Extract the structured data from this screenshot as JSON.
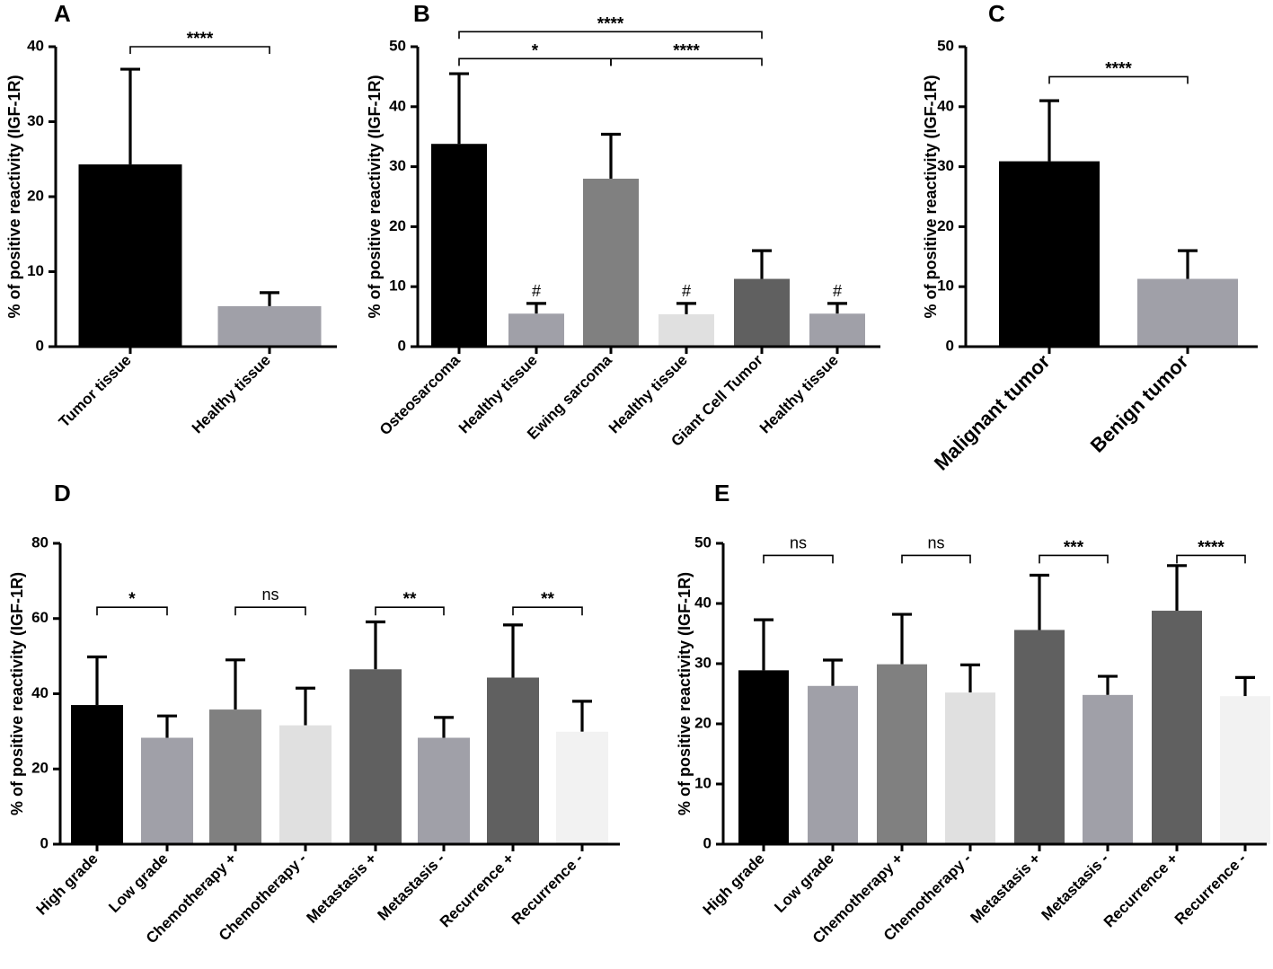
{
  "chart_data": [
    {
      "panel": "A",
      "type": "bar",
      "ylabel": "% of positive reactivity (IGF-1R)",
      "ylim": [
        0,
        40
      ],
      "yticks": [
        0,
        10,
        20,
        30,
        40
      ],
      "categories": [
        "Tumor tissue",
        "Healthy tissue"
      ],
      "values": [
        24.3,
        5.4
      ],
      "errors": [
        12.7,
        1.8
      ],
      "colors": [
        "#000000",
        "#a0a0a8"
      ],
      "brackets": [
        {
          "from": 0,
          "to": 1,
          "label": "****",
          "y": 40
        }
      ],
      "marks": []
    },
    {
      "panel": "B",
      "type": "bar",
      "ylabel": "% of positive reactivity (IGF-1R)",
      "ylim": [
        0,
        50
      ],
      "yticks": [
        0,
        10,
        20,
        30,
        40,
        50
      ],
      "categories": [
        "Osteosarcoma",
        "Healthy tissue",
        "Ewing sarcoma",
        "Healthy tissue",
        "Giant Cell Tumor",
        "Healthy tissue"
      ],
      "values": [
        33.8,
        5.5,
        28.0,
        5.4,
        11.3,
        5.5
      ],
      "errors": [
        11.7,
        1.7,
        7.4,
        1.8,
        4.7,
        1.7
      ],
      "colors": [
        "#000000",
        "#a0a0a8",
        "#808080",
        "#e0e0e0",
        "#606060",
        "#a0a0a8"
      ],
      "brackets": [
        {
          "from": 0,
          "to": 4,
          "label": "****",
          "y": 52.5
        },
        {
          "from": 0,
          "to": 2,
          "label": "*",
          "y": 48
        },
        {
          "from": 2,
          "to": 4,
          "label": "****",
          "y": 48
        }
      ],
      "marks": [
        {
          "index": 1,
          "label": "#"
        },
        {
          "index": 3,
          "label": "#"
        },
        {
          "index": 5,
          "label": "#"
        }
      ]
    },
    {
      "panel": "C",
      "type": "bar",
      "ylabel": "% of positive reactivity (IGF-1R)",
      "ylim": [
        0,
        50
      ],
      "yticks": [
        0,
        10,
        20,
        30,
        40,
        50
      ],
      "categories": [
        "Malignant tumor",
        "Benign tumor"
      ],
      "values": [
        30.9,
        11.3
      ],
      "errors": [
        10.1,
        4.7
      ],
      "colors": [
        "#000000",
        "#a0a0a8"
      ],
      "brackets": [
        {
          "from": 0,
          "to": 1,
          "label": "****",
          "y": 45
        }
      ],
      "marks": []
    },
    {
      "panel": "D",
      "type": "bar",
      "ylabel": "% of positive reactivity (IGF-1R)",
      "ylim": [
        0,
        80
      ],
      "yticks": [
        0,
        20,
        40,
        60,
        80
      ],
      "categories": [
        "High grade",
        "Low grade",
        "Chemotherapy +",
        "Chemotherapy -",
        "Metastasis +",
        "Metastasis -",
        "Recurrence +",
        "Recurrence -"
      ],
      "values": [
        37.0,
        28.3,
        35.8,
        31.6,
        46.5,
        28.3,
        44.3,
        29.9
      ],
      "errors": [
        12.8,
        5.8,
        13.2,
        9.9,
        12.6,
        5.4,
        14.0,
        8.1
      ],
      "colors": [
        "#000000",
        "#a0a0a8",
        "#808080",
        "#e0e0e0",
        "#606060",
        "#a0a0a8",
        "#606060",
        "#f2f2f2"
      ],
      "brackets": [
        {
          "from": 0,
          "to": 1,
          "label": "*",
          "y": 63
        },
        {
          "from": 2,
          "to": 3,
          "label": "ns",
          "y": 63
        },
        {
          "from": 4,
          "to": 5,
          "label": "**",
          "y": 63
        },
        {
          "from": 6,
          "to": 7,
          "label": "**",
          "y": 63
        }
      ],
      "marks": []
    },
    {
      "panel": "E",
      "type": "bar",
      "ylabel": "% of positive reactivity (IGF-1R)",
      "ylim": [
        0,
        50
      ],
      "yticks": [
        0,
        10,
        20,
        30,
        40,
        50
      ],
      "categories": [
        "High grade",
        "Low grade",
        "Chemotherapy +",
        "Chemotherapy -",
        "Metastasis +",
        "Metastasis -",
        "Recurrence +",
        "Recurrence -"
      ],
      "values": [
        28.9,
        26.3,
        29.9,
        25.2,
        35.6,
        24.8,
        38.8,
        24.6
      ],
      "errors": [
        8.4,
        4.3,
        8.3,
        4.6,
        9.1,
        3.1,
        7.5,
        3.1
      ],
      "colors": [
        "#000000",
        "#a0a0a8",
        "#808080",
        "#e0e0e0",
        "#606060",
        "#a0a0a8",
        "#606060",
        "#f2f2f2"
      ],
      "brackets": [
        {
          "from": 0,
          "to": 1,
          "label": "ns",
          "y": 48
        },
        {
          "from": 2,
          "to": 3,
          "label": "ns",
          "y": 48
        },
        {
          "from": 4,
          "to": 5,
          "label": "***",
          "y": 48
        },
        {
          "from": 6,
          "to": 7,
          "label": "****",
          "y": 48
        }
      ],
      "marks": []
    }
  ]
}
